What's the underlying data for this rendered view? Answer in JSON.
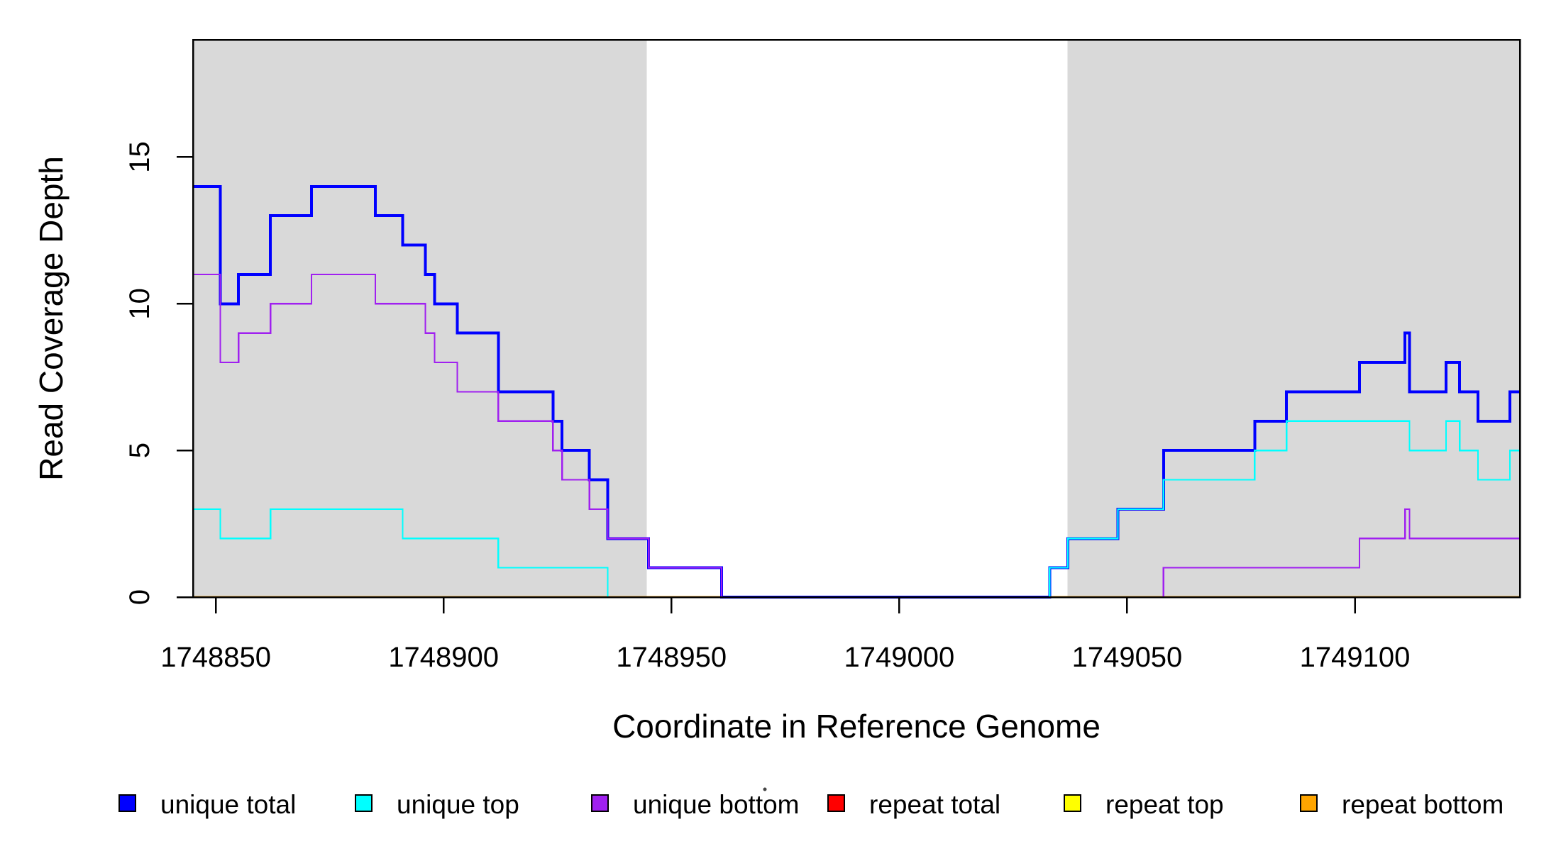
{
  "chart_data": {
    "type": "line",
    "subtype": "step-coverage-plot",
    "title": "",
    "xlabel": "Coordinate in Reference Genome",
    "ylabel": "Read Coverage Depth",
    "x_range": [
      1748845,
      1749136.2
    ],
    "y_range": [
      0,
      19
    ],
    "x_ticks": [
      1748850,
      1748900,
      1748950,
      1749000,
      1749050,
      1749100
    ],
    "x_tick_labels": [
      "1748850",
      "1748900",
      "1748950",
      "1749000",
      "1749050",
      "1749100"
    ],
    "y_ticks": [
      0,
      5,
      10,
      15
    ],
    "y_tick_labels": [
      "0",
      "5",
      "10",
      "15"
    ],
    "grid": false,
    "legend_position": "bottom",
    "shade_color": "#d9d9d9",
    "shaded_regions": [
      [
        1748845,
        1748944.6
      ],
      [
        1749036.9,
        1749136.2
      ]
    ],
    "series": [
      {
        "name": "repeat total",
        "color": "#ff0000",
        "width": 2.2,
        "steps": [
          [
            1748845,
            0
          ]
        ]
      },
      {
        "name": "repeat top",
        "color": "#ffff00",
        "width": 2.2,
        "steps": [
          [
            1748845,
            0
          ]
        ]
      },
      {
        "name": "repeat bottom",
        "color": "#ffa500",
        "width": 3,
        "steps": [
          [
            1748845,
            0
          ]
        ]
      },
      {
        "name": "unique total",
        "color": "#0000ff",
        "width": 4,
        "steps": [
          [
            1748845,
            14
          ],
          [
            1748851,
            10
          ],
          [
            1748855,
            11
          ],
          [
            1748862,
            13
          ],
          [
            1748871,
            14
          ],
          [
            1748885,
            13
          ],
          [
            1748891,
            12
          ],
          [
            1748896,
            11
          ],
          [
            1748898,
            10
          ],
          [
            1748903,
            9
          ],
          [
            1748912,
            7
          ],
          [
            1748924,
            6
          ],
          [
            1748926,
            5
          ],
          [
            1748932,
            4
          ],
          [
            1748936,
            2
          ],
          [
            1748945,
            1
          ],
          [
            1748961,
            0
          ],
          [
            1749033,
            1
          ],
          [
            1749037,
            2
          ],
          [
            1749048,
            3
          ],
          [
            1749058,
            5
          ],
          [
            1749078,
            6
          ],
          [
            1749085,
            7
          ],
          [
            1749101,
            8
          ],
          [
            1749111,
            9
          ],
          [
            1749112,
            7
          ],
          [
            1749120,
            8
          ],
          [
            1749123,
            7
          ],
          [
            1749127,
            6
          ],
          [
            1749134,
            7
          ]
        ]
      },
      {
        "name": "unique top",
        "color": "#00ffff",
        "width": 2.2,
        "steps": [
          [
            1748845,
            3
          ],
          [
            1748851,
            2
          ],
          [
            1748862,
            3
          ],
          [
            1748891,
            2
          ],
          [
            1748912,
            1
          ],
          [
            1748936,
            0
          ],
          [
            1749033,
            1
          ],
          [
            1749037,
            2
          ],
          [
            1749048,
            3
          ],
          [
            1749058,
            4
          ],
          [
            1749078,
            5
          ],
          [
            1749085,
            6
          ],
          [
            1749112,
            5
          ],
          [
            1749120,
            6
          ],
          [
            1749123,
            5
          ],
          [
            1749127,
            4
          ],
          [
            1749134,
            5
          ]
        ]
      },
      {
        "name": "unique bottom",
        "color": "#a020f0",
        "width": 2.2,
        "steps": [
          [
            1748845,
            11
          ],
          [
            1748851,
            8
          ],
          [
            1748855,
            9
          ],
          [
            1748862,
            10
          ],
          [
            1748871,
            11
          ],
          [
            1748885,
            10
          ],
          [
            1748896,
            9
          ],
          [
            1748898,
            8
          ],
          [
            1748903,
            7
          ],
          [
            1748912,
            6
          ],
          [
            1748924,
            5
          ],
          [
            1748926,
            4
          ],
          [
            1748932,
            3
          ],
          [
            1748936,
            2
          ],
          [
            1748945,
            1
          ],
          [
            1748961,
            0
          ],
          [
            1749058,
            1
          ],
          [
            1749101,
            2
          ],
          [
            1749111,
            3
          ],
          [
            1749112,
            2
          ]
        ]
      }
    ],
    "legend": [
      {
        "label": "unique total",
        "color": "#0000ff"
      },
      {
        "label": "unique top",
        "color": "#00ffff"
      },
      {
        "label": "unique bottom",
        "color": "#a020f0"
      },
      {
        "label": "repeat total",
        "color": "#ff0000"
      },
      {
        "label": "repeat top",
        "color": "#ffff00"
      },
      {
        "label": "repeat bottom",
        "color": "#ffa500"
      }
    ]
  }
}
